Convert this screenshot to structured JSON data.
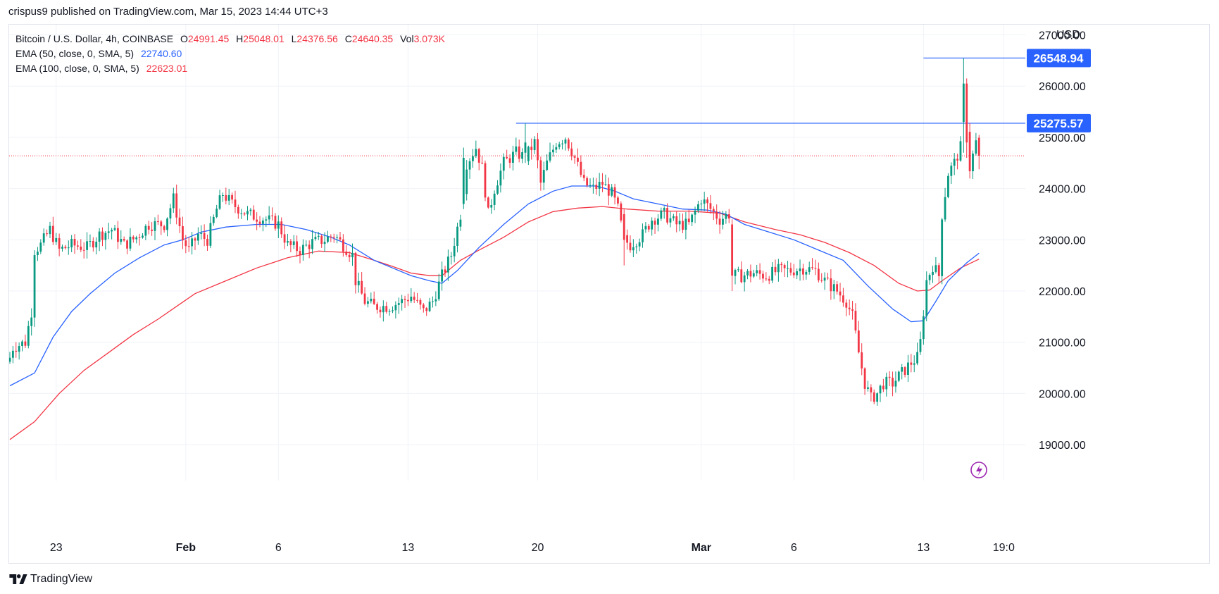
{
  "header": {
    "published": "crispus9 published on TradingView.com, Mar 15, 2023 14:44 UTC+3"
  },
  "legend": {
    "title": "Bitcoin / U.S. Dollar, 4h, COINBASE",
    "o_label": "O",
    "o_value": "24991.45",
    "h_label": "H",
    "h_value": "25048.01",
    "l_label": "L",
    "l_value": "24376.56",
    "c_label": "C",
    "c_value": "24640.35",
    "vol_label": "Vol",
    "vol_value": "3.073K",
    "ema50_label": "EMA (50, close, 0, SMA, 5)",
    "ema50_value": "22740.60",
    "ema100_label": "EMA (100, close, 0, SMA, 5)",
    "ema100_value": "22623.01"
  },
  "footer": {
    "brand": "TradingView"
  },
  "colors": {
    "up": "#089981",
    "down": "#f23645",
    "ema50": "#2962ff",
    "ema100": "#f23645",
    "hline": "#2962ff",
    "grid": "#f0f3fa",
    "axis_text": "#131722",
    "label_bg": "#2962ff",
    "lightning": "#9c27b0"
  },
  "chart_data": {
    "type": "candlestick",
    "currency": "USD",
    "ylim": [
      18300,
      27200
    ],
    "y_ticks": [
      19000,
      20000,
      21000,
      22000,
      23000,
      24000,
      25000,
      26000,
      27000
    ],
    "y_tick_labels": [
      "19000.00",
      "20000.00",
      "21000.00",
      "22000.00",
      "23000.00",
      "24000.00",
      "25000.00",
      "26000.00",
      "27000.00"
    ],
    "x_ticks": [
      {
        "label": "23",
        "bar": 15,
        "bold": false
      },
      {
        "label": "Feb",
        "bar": 57,
        "bold": true
      },
      {
        "label": "6",
        "bar": 87,
        "bold": false
      },
      {
        "label": "13",
        "bar": 129,
        "bold": false
      },
      {
        "label": "20",
        "bar": 171,
        "bold": false
      },
      {
        "label": "Mar",
        "bar": 224,
        "bold": true
      },
      {
        "label": "6",
        "bar": 254,
        "bold": false
      },
      {
        "label": "13",
        "bar": 296,
        "bold": false
      },
      {
        "label": "19:0",
        "bar": 322,
        "bold": false
      }
    ],
    "horizontal_lines": [
      {
        "value": 26548.94,
        "label": "26548.94",
        "from_bar": 296
      },
      {
        "value": 25275.57,
        "label": "25275.57",
        "from_bar": 164
      }
    ],
    "last_price": 24640.35,
    "anchors": [
      [
        0,
        20700
      ],
      [
        1,
        20900
      ],
      [
        3,
        20950
      ],
      [
        5,
        21000
      ],
      [
        7,
        21600
      ],
      [
        8,
        22800
      ],
      [
        10,
        22900
      ],
      [
        13,
        23200
      ],
      [
        16,
        22800
      ],
      [
        20,
        22900
      ],
      [
        25,
        22850
      ],
      [
        29,
        23100
      ],
      [
        33,
        23200
      ],
      [
        37,
        22900
      ],
      [
        41,
        23050
      ],
      [
        45,
        23300
      ],
      [
        50,
        23300
      ],
      [
        53,
        23800
      ],
      [
        56,
        23000
      ],
      [
        58,
        22800
      ],
      [
        61,
        23100
      ],
      [
        64,
        23000
      ],
      [
        67,
        23600
      ],
      [
        69,
        23900
      ],
      [
        72,
        23700
      ],
      [
        77,
        23500
      ],
      [
        83,
        23400
      ],
      [
        87,
        23300
      ],
      [
        90,
        22900
      ],
      [
        94,
        22800
      ],
      [
        98,
        22950
      ],
      [
        102,
        23000
      ],
      [
        105,
        23100
      ],
      [
        108,
        22900
      ],
      [
        111,
        22700
      ],
      [
        112,
        22200
      ],
      [
        115,
        21800
      ],
      [
        118,
        21700
      ],
      [
        123,
        21700
      ],
      [
        127,
        21800
      ],
      [
        130,
        21900
      ],
      [
        134,
        21600
      ],
      [
        137,
        21800
      ],
      [
        140,
        22300
      ],
      [
        143,
        22700
      ],
      [
        146,
        23500
      ],
      [
        148,
        24500
      ],
      [
        151,
        24800
      ],
      [
        153,
        24400
      ],
      [
        155,
        23500
      ],
      [
        157,
        24000
      ],
      [
        160,
        24500
      ],
      [
        164,
        24700
      ],
      [
        167,
        24600
      ],
      [
        170,
        24900
      ],
      [
        172,
        24100
      ],
      [
        174,
        24500
      ],
      [
        177,
        24900
      ],
      [
        180,
        25000
      ],
      [
        183,
        24600
      ],
      [
        186,
        24100
      ],
      [
        189,
        24000
      ],
      [
        192,
        24100
      ],
      [
        195,
        23900
      ],
      [
        197,
        23600
      ],
      [
        199,
        23000
      ],
      [
        201,
        22900
      ],
      [
        205,
        23100
      ],
      [
        208,
        23400
      ],
      [
        212,
        23500
      ],
      [
        216,
        23300
      ],
      [
        220,
        23300
      ],
      [
        224,
        23800
      ],
      [
        227,
        23600
      ],
      [
        230,
        23400
      ],
      [
        233,
        23500
      ],
      [
        234,
        22300
      ],
      [
        237,
        22300
      ],
      [
        241,
        22350
      ],
      [
        245,
        22300
      ],
      [
        249,
        22400
      ],
      [
        253,
        22400
      ],
      [
        257,
        22450
      ],
      [
        261,
        22400
      ],
      [
        264,
        22200
      ],
      [
        268,
        22000
      ],
      [
        271,
        21800
      ],
      [
        273,
        21500
      ],
      [
        275,
        20800
      ],
      [
        277,
        20200
      ],
      [
        279,
        19900
      ],
      [
        281,
        20000
      ],
      [
        283,
        20200
      ],
      [
        286,
        20200
      ],
      [
        289,
        20400
      ],
      [
        292,
        20600
      ],
      [
        294,
        20700
      ],
      [
        295,
        21000
      ],
      [
        297,
        22200
      ],
      [
        299,
        22500
      ],
      [
        301,
        22300
      ],
      [
        302,
        23500
      ],
      [
        304,
        24300
      ],
      [
        306,
        24500
      ],
      [
        308,
        24800
      ],
      [
        309,
        25900
      ],
      [
        310,
        25200
      ],
      [
        311,
        24400
      ],
      [
        313,
        24900
      ],
      [
        314,
        24640
      ]
    ],
    "overrides": [
      {
        "bar": 309,
        "open": 25300,
        "high": 26548.94,
        "close": 26050,
        "low": 24700
      },
      {
        "bar": 310,
        "open": 26050,
        "high": 26150,
        "close": 24900,
        "low": 24600
      },
      {
        "bar": 314,
        "open": 24991.45,
        "high": 25048.01,
        "low": 24376.56,
        "close": 24640.35
      },
      {
        "bar": 167,
        "open": 24700,
        "high": 25275.57,
        "close": 24900,
        "low": 24500
      },
      {
        "bar": 199,
        "open": 23500,
        "high": 23600,
        "close": 23000,
        "low": 22500
      },
      {
        "bar": 234,
        "open": 23300,
        "high": 23400,
        "close": 22300,
        "low": 22000
      },
      {
        "bar": 147,
        "open": 23700,
        "high": 24800,
        "close": 24600,
        "low": 23600
      }
    ],
    "ema50_path": [
      [
        0,
        20150
      ],
      [
        8,
        20400
      ],
      [
        14,
        21100
      ],
      [
        20,
        21600
      ],
      [
        26,
        21950
      ],
      [
        34,
        22350
      ],
      [
        42,
        22650
      ],
      [
        50,
        22900
      ],
      [
        56,
        23000
      ],
      [
        62,
        23150
      ],
      [
        70,
        23250
      ],
      [
        80,
        23300
      ],
      [
        88,
        23300
      ],
      [
        96,
        23200
      ],
      [
        104,
        23050
      ],
      [
        110,
        22900
      ],
      [
        118,
        22600
      ],
      [
        124,
        22450
      ],
      [
        130,
        22300
      ],
      [
        136,
        22200
      ],
      [
        140,
        22150
      ],
      [
        145,
        22400
      ],
      [
        152,
        22850
      ],
      [
        160,
        23300
      ],
      [
        168,
        23700
      ],
      [
        176,
        23950
      ],
      [
        182,
        24050
      ],
      [
        190,
        24050
      ],
      [
        196,
        23950
      ],
      [
        202,
        23800
      ],
      [
        210,
        23700
      ],
      [
        218,
        23600
      ],
      [
        226,
        23580
      ],
      [
        232,
        23500
      ],
      [
        238,
        23300
      ],
      [
        246,
        23150
      ],
      [
        254,
        23000
      ],
      [
        262,
        22800
      ],
      [
        270,
        22600
      ],
      [
        278,
        22100
      ],
      [
        286,
        21650
      ],
      [
        292,
        21400
      ],
      [
        296,
        21420
      ],
      [
        300,
        21800
      ],
      [
        304,
        22200
      ],
      [
        310,
        22550
      ],
      [
        314,
        22740
      ]
    ],
    "ema100_path": [
      [
        0,
        19100
      ],
      [
        8,
        19450
      ],
      [
        16,
        20000
      ],
      [
        24,
        20450
      ],
      [
        32,
        20800
      ],
      [
        40,
        21150
      ],
      [
        48,
        21450
      ],
      [
        54,
        21700
      ],
      [
        60,
        21950
      ],
      [
        70,
        22200
      ],
      [
        80,
        22450
      ],
      [
        90,
        22650
      ],
      [
        100,
        22780
      ],
      [
        110,
        22750
      ],
      [
        118,
        22600
      ],
      [
        124,
        22480
      ],
      [
        130,
        22350
      ],
      [
        136,
        22300
      ],
      [
        140,
        22300
      ],
      [
        146,
        22600
      ],
      [
        152,
        22800
      ],
      [
        160,
        23050
      ],
      [
        168,
        23350
      ],
      [
        176,
        23550
      ],
      [
        184,
        23620
      ],
      [
        192,
        23650
      ],
      [
        200,
        23600
      ],
      [
        210,
        23560
      ],
      [
        220,
        23560
      ],
      [
        230,
        23520
      ],
      [
        238,
        23350
      ],
      [
        248,
        23200
      ],
      [
        256,
        23100
      ],
      [
        264,
        22950
      ],
      [
        272,
        22750
      ],
      [
        280,
        22500
      ],
      [
        288,
        22150
      ],
      [
        294,
        22000
      ],
      [
        298,
        22020
      ],
      [
        302,
        22200
      ],
      [
        308,
        22450
      ],
      [
        314,
        22623
      ]
    ]
  }
}
